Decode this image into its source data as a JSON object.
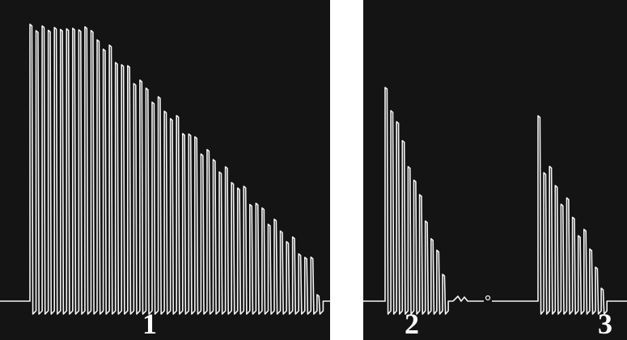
{
  "panels": [
    {
      "label": "1"
    },
    {
      "label": "2"
    },
    {
      "label": "3"
    }
  ]
}
